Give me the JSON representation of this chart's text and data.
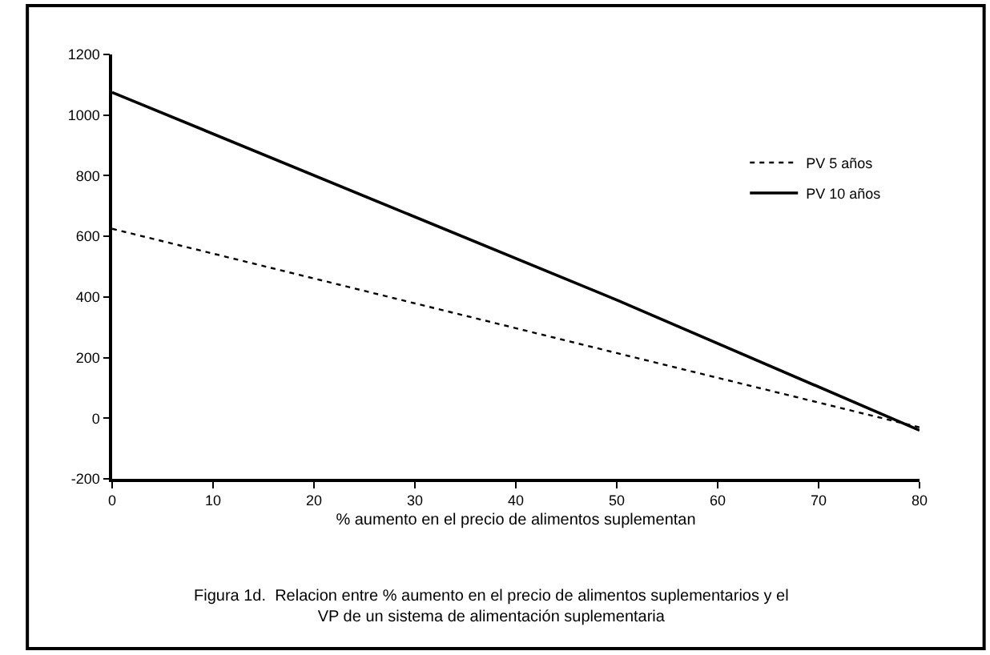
{
  "chart_data": {
    "type": "line",
    "xlabel": "% aumento en el precio de alimentos suplementan",
    "x": [
      0,
      50,
      80
    ],
    "series": [
      {
        "name": "PV 5 años",
        "color": "#000000",
        "line_style": "dotted",
        "values": [
          625,
          215,
          -30
        ]
      },
      {
        "name": "PV 10 años",
        "color": "#000000",
        "line_style": "solid",
        "values": [
          1075,
          390,
          -40
        ]
      }
    ],
    "xlim": [
      0,
      80
    ],
    "xticks": [
      0,
      10,
      20,
      30,
      40,
      50,
      60,
      70,
      80
    ],
    "ylim": [
      -200,
      1200
    ],
    "yticks": [
      -200,
      0,
      200,
      400,
      600,
      800,
      1000,
      1200
    ],
    "legend": "top right",
    "marker": "none",
    "annotations": [
      "Figura 1d.  Relacion entre % aumento en el precio de alimentos suplementarios y el\nVP de un sistema de alimentación suplementaria"
    ]
  }
}
